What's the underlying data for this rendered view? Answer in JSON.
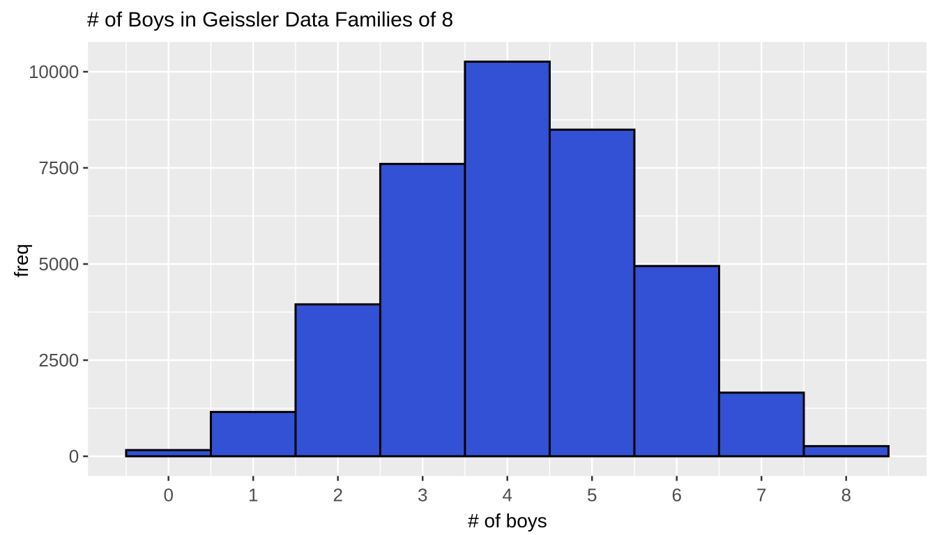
{
  "chart_data": {
    "type": "bar",
    "subtype": "histogram",
    "title": "# of Boys in Geissler Data Families of 8",
    "xlabel": "# of boys",
    "ylabel": "freq",
    "categories": [
      0,
      1,
      2,
      3,
      4,
      5,
      6,
      7,
      8
    ],
    "values": [
      161,
      1152,
      3951,
      7603,
      10263,
      8494,
      4948,
      1655,
      264
    ],
    "bar_width": 1,
    "x_tick_labels": [
      "0",
      "1",
      "2",
      "3",
      "4",
      "5",
      "6",
      "7",
      "8"
    ],
    "x_tick_values": [
      0,
      1,
      2,
      3,
      4,
      5,
      6,
      7,
      8
    ],
    "y_tick_labels": [
      "0",
      "2500",
      "5000",
      "7500",
      "10000"
    ],
    "y_tick_values": [
      0,
      2500,
      5000,
      7500,
      10000
    ],
    "y_minor_values": [
      1250,
      3750,
      6250,
      8750
    ],
    "x_minor_values": [
      -0.5,
      0.5,
      1.5,
      2.5,
      3.5,
      4.5,
      5.5,
      6.5,
      7.5,
      8.5
    ],
    "xlim": [
      -0.95,
      8.95
    ],
    "ylim": [
      -513,
      10776
    ],
    "grid": "major and minor, white on grey panel",
    "legend": false,
    "colors": {
      "bar_fill": "#3351D4",
      "bar_stroke": "#000000",
      "panel_background": "#EBEBEB",
      "grid_line": "#FFFFFF",
      "tick_mark": "#333333",
      "tick_label": "#4D4D4D",
      "title_text": "#000000"
    }
  }
}
